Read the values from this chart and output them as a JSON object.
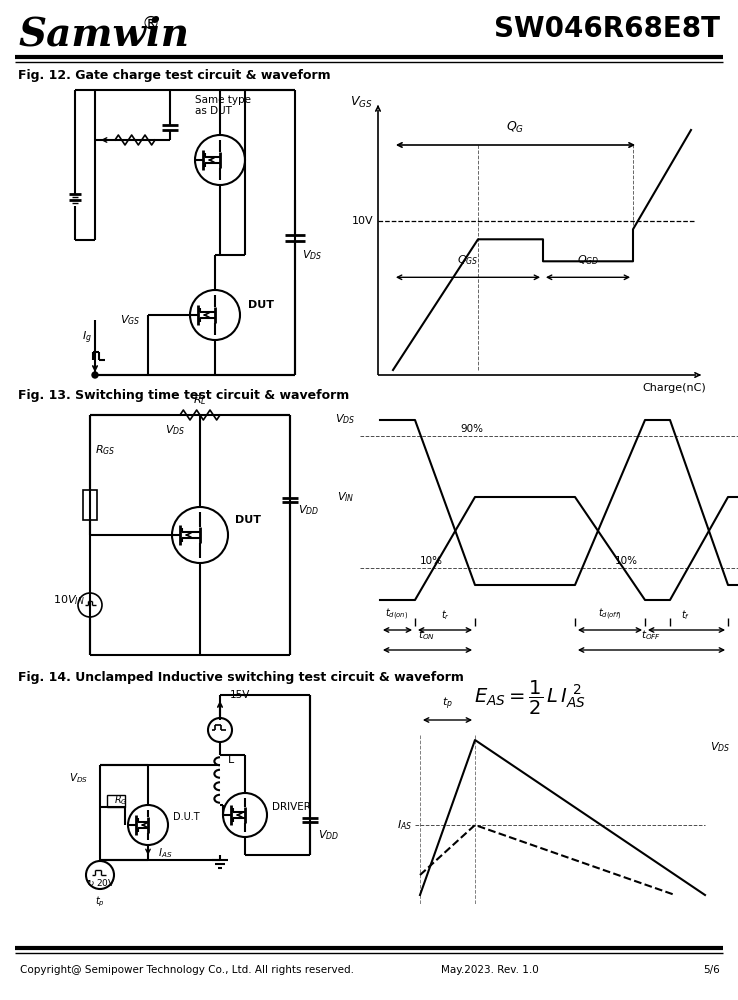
{
  "title_left": "Samwin",
  "title_right": "SW046R68E8T",
  "registered_symbol": "®",
  "fig12_title": "Fig. 12. Gate charge test circuit & waveform",
  "fig13_title": "Fig. 13. Switching time test circuit & waveform",
  "fig14_title": "Fig. 14. Unclamped Inductive switching test circuit & waveform",
  "footer_left": "Copyright@ Semipower Technology Co., Ltd. All rights reserved.",
  "footer_mid": "May.2023. Rev. 1.0",
  "footer_right": "5/6",
  "bg_color": "#ffffff"
}
